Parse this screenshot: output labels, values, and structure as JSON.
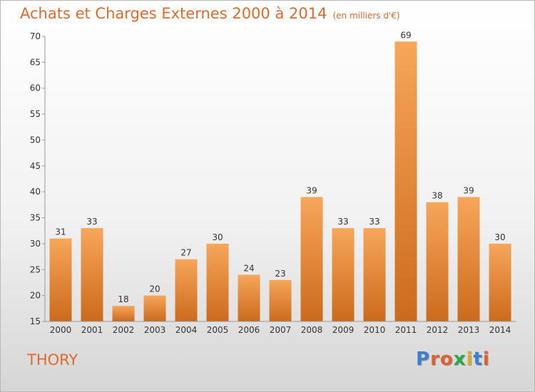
{
  "header": {
    "title": "Achats et Charges Externes 2000 à 2014",
    "unit": "(en milliers d'€)"
  },
  "footer": {
    "commune": "THORY",
    "logo": "Proxiti",
    "logo_colors": [
      "#3a7fd0",
      "#e2602a",
      "#e2602a",
      "#2aa84a",
      "#e2a82a",
      "#3a7fd0",
      "#e2602a"
    ]
  },
  "colors": {
    "bar_light": "#f7a65a",
    "bar_dark": "#cc6a1c",
    "title": "#e06a2a"
  },
  "chart_data": {
    "type": "bar",
    "title": "Achats et Charges Externes 2000 à 2014",
    "xlabel": "",
    "ylabel": "",
    "categories": [
      "2000",
      "2001",
      "2002",
      "2003",
      "2004",
      "2005",
      "2006",
      "2007",
      "2008",
      "2009",
      "2010",
      "2011",
      "2012",
      "2013",
      "2014"
    ],
    "values": [
      31,
      33,
      18,
      20,
      27,
      30,
      24,
      23,
      39,
      33,
      33,
      69,
      38,
      39,
      30
    ],
    "ylim": [
      15,
      70
    ],
    "yticks": [
      15,
      20,
      25,
      30,
      35,
      40,
      45,
      50,
      55,
      60,
      65,
      70
    ],
    "grid": false,
    "data_labels": true
  }
}
